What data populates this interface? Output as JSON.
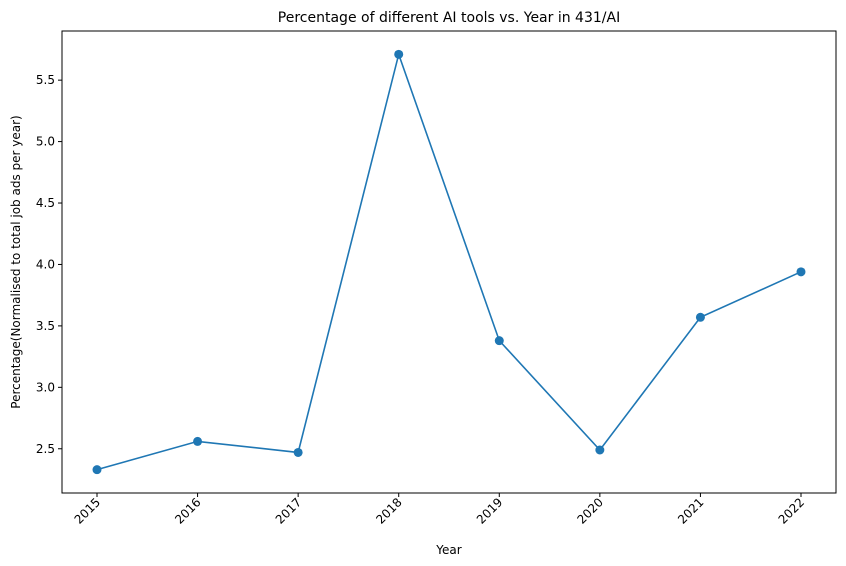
{
  "chart_data": {
    "type": "line",
    "title": "Percentage of different AI tools vs. Year in 431/AI",
    "xlabel": "Year",
    "ylabel": "Percentage(Normalised to total job ads per year)",
    "x": [
      "2015",
      "2016",
      "2017",
      "2018",
      "2019",
      "2020",
      "2021",
      "2022"
    ],
    "series": [
      {
        "values": [
          2.33,
          2.56,
          2.47,
          5.71,
          3.38,
          2.49,
          3.57,
          3.94
        ],
        "color": "#1f77b4"
      }
    ],
    "ylim": [
      2.14,
      5.9
    ],
    "yticks": [
      "2.5",
      "3.0",
      "3.5",
      "4.0",
      "4.5",
      "5.0",
      "5.5"
    ],
    "grid": false,
    "legend": "none"
  }
}
